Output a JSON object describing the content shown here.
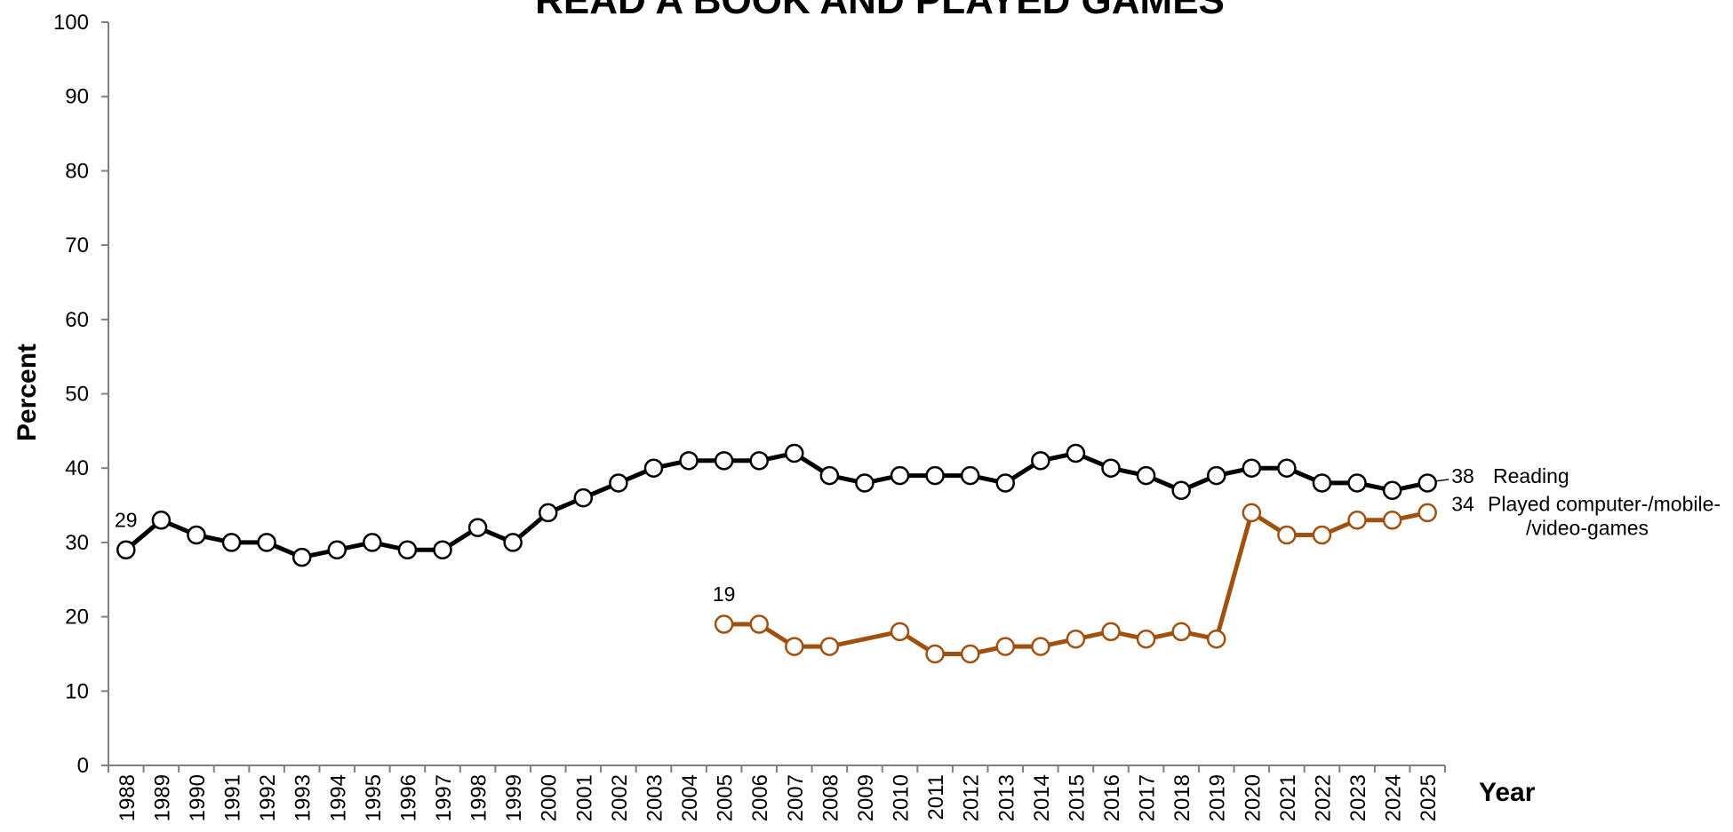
{
  "chart_data": {
    "type": "line",
    "title": "READ A BOOK AND PLAYED GAMES",
    "xlabel": "Year",
    "ylabel": "Percent",
    "ylim": [
      0,
      100
    ],
    "yticks": [
      "0",
      "10",
      "20",
      "30",
      "40",
      "50",
      "60",
      "70",
      "80",
      "90",
      "100"
    ],
    "categories": [
      "1988",
      "1989",
      "1990",
      "1991",
      "1992",
      "1993",
      "1994",
      "1995",
      "1996",
      "1997",
      "1998",
      "1999",
      "2000",
      "2001",
      "2002",
      "2003",
      "2004",
      "2005",
      "2006",
      "2007",
      "2008",
      "2009",
      "2010",
      "2011",
      "2012",
      "2013",
      "2014",
      "2015",
      "2016",
      "2017",
      "2018",
      "2019",
      "2020",
      "2021",
      "2022",
      "2023",
      "2024",
      "2025"
    ],
    "legend": "none",
    "grid": false,
    "series": [
      {
        "name": "Reading",
        "color": "#000000",
        "values": [
          29,
          33,
          31,
          30,
          30,
          28,
          29,
          30,
          29,
          29,
          32,
          30,
          34,
          36,
          38,
          40,
          41,
          41,
          41,
          42,
          39,
          38,
          39,
          39,
          39,
          38,
          41,
          42,
          40,
          39,
          37,
          39,
          40,
          40,
          38,
          38,
          37,
          38
        ],
        "end_value_label": "38",
        "label_lines": [
          "Reading"
        ]
      },
      {
        "name": "Played computer-/mobile-/video-games",
        "color": "#a0500f",
        "values": [
          null,
          null,
          null,
          null,
          null,
          null,
          null,
          null,
          null,
          null,
          null,
          null,
          null,
          null,
          null,
          null,
          null,
          19,
          19,
          16,
          16,
          null,
          18,
          15,
          15,
          16,
          16,
          17,
          18,
          17,
          18,
          17,
          34,
          31,
          31,
          33,
          33,
          34
        ],
        "start_value_label": "19",
        "end_value_label": "34",
        "label_lines": [
          "Played computer-/mobile-",
          "/video-games"
        ]
      }
    ],
    "annotations": [
      {
        "text": "29",
        "series": 0,
        "index": 0
      }
    ]
  }
}
